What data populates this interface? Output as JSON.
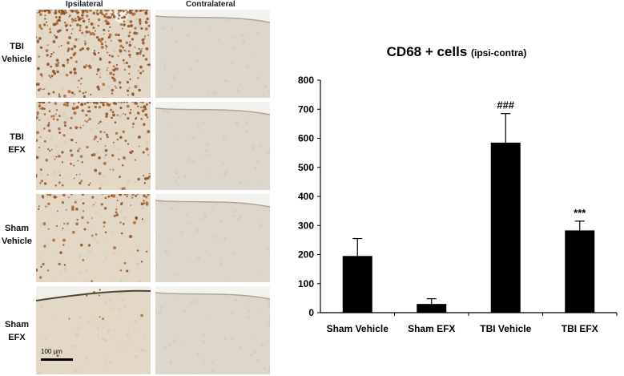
{
  "micrographs": {
    "columns": [
      "Ipsilateral",
      "Contralateral"
    ],
    "rows": [
      {
        "line1": "TBI",
        "line2": "Vehicle",
        "staining": "heavy"
      },
      {
        "line1": "TBI",
        "line2": "EFX",
        "staining": "moderate"
      },
      {
        "line1": "Sham",
        "line2": "Vehicle",
        "staining": "light"
      },
      {
        "line1": "Sham",
        "line2": "EFX",
        "staining": "minimal"
      }
    ],
    "scale_bar_label": "100 µm"
  },
  "chart_data": {
    "type": "bar",
    "title": "CD68 + cells",
    "title_suffix": "(ipsi-contra)",
    "categories": [
      "Sham Vehicle",
      "Sham EFX",
      "TBI Vehicle",
      "TBI EFX"
    ],
    "values": [
      195,
      30,
      585,
      283
    ],
    "errors": [
      60,
      18,
      100,
      32
    ],
    "annotations": [
      "",
      "",
      "###",
      "***"
    ],
    "ylim": [
      0,
      800
    ],
    "yticks": [
      0,
      100,
      200,
      300,
      400,
      500,
      600,
      700,
      800
    ],
    "bar_color": "#000000",
    "grid": false,
    "legend": "none"
  }
}
